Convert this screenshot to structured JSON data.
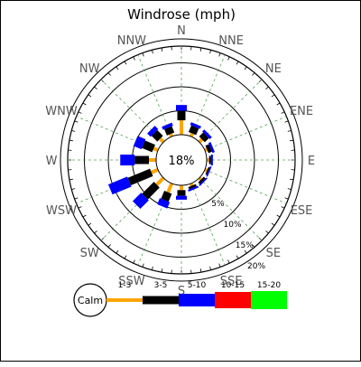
{
  "chart_data": {
    "type": "windrose",
    "title": "Windrose (mph)",
    "center_label": "18%",
    "calm_label": "Calm",
    "directions": [
      "N",
      "NNE",
      "NE",
      "ENE",
      "E",
      "ESE",
      "SE",
      "SSE",
      "S",
      "SSW",
      "SW",
      "WSW",
      "W",
      "WNW",
      "NW",
      "NNW"
    ],
    "ring_values": [
      5,
      10,
      15,
      20
    ],
    "ring_labels": [
      "5%",
      "10%",
      "15%",
      "20%"
    ],
    "speed_bins": [
      {
        "label": "1-3",
        "color": "#ffa500"
      },
      {
        "label": "3-5",
        "color": "#000000"
      },
      {
        "label": "5-10",
        "color": "#0000ff"
      },
      {
        "label": "10-15",
        "color": "#ff0000"
      },
      {
        "label": "15-20",
        "color": "#00ff00"
      }
    ],
    "series": [
      {
        "direction": "N",
        "values": [
          3.0,
          2.0,
          1.2,
          0,
          0
        ]
      },
      {
        "direction": "NNE",
        "values": [
          0.7,
          1.5,
          0.6,
          0,
          0
        ]
      },
      {
        "direction": "NE",
        "values": [
          0.8,
          1.2,
          0.6,
          0,
          0
        ]
      },
      {
        "direction": "ENE",
        "values": [
          0.5,
          0.8,
          0.5,
          0,
          0
        ]
      },
      {
        "direction": "E",
        "values": [
          0.5,
          0.4,
          0.4,
          0,
          0
        ]
      },
      {
        "direction": "ESE",
        "values": [
          0.5,
          0.3,
          0.3,
          0,
          0
        ]
      },
      {
        "direction": "SE",
        "values": [
          0.5,
          0.5,
          0.3,
          0,
          0
        ]
      },
      {
        "direction": "SSE",
        "values": [
          0.5,
          0.5,
          0.4,
          0,
          0
        ]
      },
      {
        "direction": "S",
        "values": [
          1.0,
          1.2,
          0.8,
          0,
          0
        ]
      },
      {
        "direction": "SSW",
        "values": [
          2.0,
          1.8,
          1.4,
          0,
          0
        ]
      },
      {
        "direction": "SW",
        "values": [
          2.0,
          3.5,
          2.5,
          0,
          0
        ]
      },
      {
        "direction": "WSW",
        "values": [
          1.5,
          5.0,
          4.3,
          0,
          0
        ]
      },
      {
        "direction": "W",
        "values": [
          1.5,
          3.0,
          3.0,
          0,
          0
        ]
      },
      {
        "direction": "WNW",
        "values": [
          1.0,
          2.3,
          1.8,
          0,
          0
        ]
      },
      {
        "direction": "NW",
        "values": [
          1.0,
          1.7,
          1.0,
          0,
          0
        ]
      },
      {
        "direction": "NNW",
        "values": [
          0.6,
          1.4,
          0.7,
          0,
          0
        ]
      }
    ]
  }
}
